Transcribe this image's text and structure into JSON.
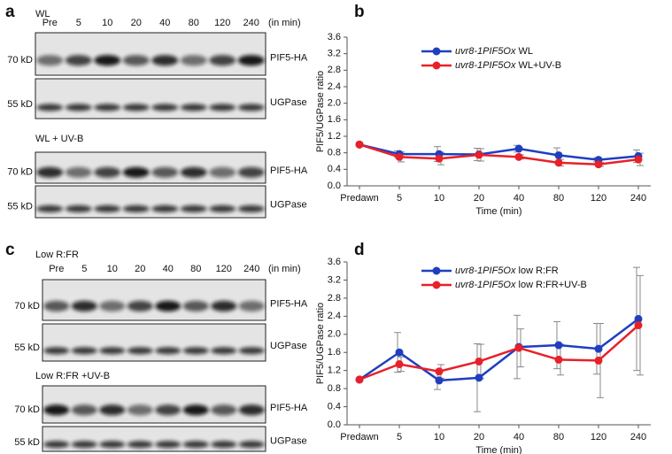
{
  "panel_labels": [
    "a",
    "b",
    "c",
    "d"
  ],
  "blot_panels": [
    {
      "lanes": [
        "Pre",
        "5",
        "10",
        "20",
        "40",
        "80",
        "120",
        "240"
      ],
      "unit": "(in min)",
      "blocks": [
        {
          "condition": "WL",
          "rows": [
            {
              "size": "70 kD",
              "protein": "PIF5-HA"
            },
            {
              "size": "55 kD",
              "protein": "UGPase"
            }
          ]
        },
        {
          "condition": "WL + UV-B",
          "rows": [
            {
              "size": "70 kD",
              "protein": "PIF5-HA"
            },
            {
              "size": "55 kD",
              "protein": "UGPase"
            }
          ]
        }
      ]
    },
    {
      "lanes": [
        "Pre",
        "5",
        "10",
        "20",
        "40",
        "80",
        "120",
        "240"
      ],
      "unit": "(in min)",
      "blocks": [
        {
          "condition": "Low R:FR",
          "rows": [
            {
              "size": "70 kD",
              "protein": "PIF5-HA"
            },
            {
              "size": "55 kD",
              "protein": "UGPase"
            }
          ]
        },
        {
          "condition": "Low R:FR +UV-B",
          "rows": [
            {
              "size": "70 kD",
              "protein": "PIF5-HA"
            },
            {
              "size": "55 kD",
              "protein": "UGPase"
            }
          ]
        }
      ]
    }
  ],
  "chart_data": [
    {
      "type": "line",
      "x_label": "Time (min)",
      "y_label": "PIF5/UGPase ratio",
      "categories": [
        "Predawn",
        "5",
        "10",
        "20",
        "40",
        "80",
        "120",
        "240"
      ],
      "ylim": [
        0,
        3.6
      ],
      "yticks": [
        {
          "value": 0,
          "label": "0.0"
        },
        0.4,
        0.8,
        1.2,
        1.6,
        {
          "value": 2,
          "label": "2.0"
        },
        2.4,
        2.8,
        3.2,
        3.6
      ],
      "series": [
        {
          "name": "uvr8-1PIF5Ox WL",
          "color": "#1f3fbf",
          "values": [
            1.0,
            0.77,
            0.77,
            0.76,
            0.9,
            0.74,
            0.63,
            0.72
          ],
          "errors": [
            0,
            0.08,
            0.18,
            0.15,
            0.08,
            0.18,
            0.05,
            0.15
          ]
        },
        {
          "name": "uvr8-1PIF5Ox WL+UV-B",
          "color": "#e8202a",
          "values": [
            1.0,
            0.7,
            0.66,
            0.75,
            0.7,
            0.56,
            0.52,
            0.64
          ],
          "errors": [
            0,
            0.12,
            0.15,
            0.15,
            0.05,
            0.08,
            0.05,
            0.15
          ]
        }
      ]
    },
    {
      "type": "line",
      "x_label": "Time (min)",
      "y_label": "PIF5/UGPase ratio",
      "categories": [
        "Predawn",
        "5",
        "10",
        "20",
        "40",
        "80",
        "120",
        "240"
      ],
      "ylim": [
        0,
        3.6
      ],
      "yticks": [
        {
          "value": 0,
          "label": "0.0"
        },
        0.4,
        0.8,
        1.2,
        1.6,
        {
          "value": 2,
          "label": "2.0"
        },
        2.4,
        2.8,
        3.2,
        3.6
      ],
      "series": [
        {
          "name": "uvr8-1PIF5Ox low R:FR",
          "color": "#1f3fbf",
          "values": [
            1.0,
            1.6,
            0.98,
            1.04,
            1.72,
            1.76,
            1.68,
            2.34
          ],
          "errors": [
            0,
            0.44,
            0.2,
            0.75,
            0.7,
            0.52,
            0.56,
            1.14
          ]
        },
        {
          "name": "uvr8-1PIF5Ox low R:FR+UV-B",
          "color": "#e8202a",
          "values": [
            1.0,
            1.34,
            1.18,
            1.4,
            1.7,
            1.44,
            1.42,
            2.2
          ],
          "errors": [
            0,
            0.16,
            0.15,
            0.38,
            0.42,
            0.34,
            0.82,
            1.1
          ]
        }
      ]
    }
  ]
}
